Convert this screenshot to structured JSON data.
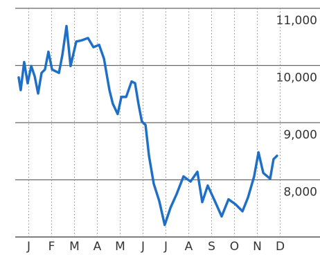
{
  "chart_data": {
    "type": "line",
    "x": [
      0.06,
      0.15,
      0.3,
      0.45,
      0.61,
      0.76,
      0.91,
      1.06,
      1.21,
      1.36,
      1.52,
      1.82,
      1.97,
      2.15,
      2.33,
      2.58,
      2.82,
      3.09,
      3.33,
      3.58,
      3.79,
      4.03,
      4.18,
      4.39,
      4.55,
      4.76,
      5.0,
      5.15,
      5.3,
      5.45,
      5.61,
      5.76,
      5.97,
      6.21,
      6.45,
      6.7,
      6.97,
      7.27,
      7.58,
      7.88,
      8.09,
      8.33,
      8.64,
      8.94,
      9.24,
      9.55,
      9.85,
      10.09,
      10.36,
      10.55,
      10.76,
      11.06,
      11.21,
      11.36
    ],
    "values": [
      9790,
      9570,
      10060,
      9690,
      9990,
      9810,
      9510,
      9870,
      9930,
      10240,
      9930,
      9870,
      10180,
      10690,
      9990,
      10420,
      10440,
      10480,
      10320,
      10360,
      10120,
      9570,
      9330,
      9150,
      9450,
      9450,
      9720,
      9690,
      9330,
      9020,
      8960,
      8420,
      7930,
      7630,
      7210,
      7510,
      7750,
      8060,
      7970,
      8140,
      7610,
      7900,
      7630,
      7360,
      7660,
      7570,
      7450,
      7690,
      8060,
      8480,
      8120,
      8020,
      8360,
      8420
    ],
    "color": "#1f6fc6",
    "xlim": [
      0,
      12
    ],
    "xticks": [
      {
        "value": 0.5,
        "label": "J"
      },
      {
        "value": 1.5,
        "label": "F"
      },
      {
        "value": 2.5,
        "label": "M"
      },
      {
        "value": 3.5,
        "label": "A"
      },
      {
        "value": 4.5,
        "label": "M"
      },
      {
        "value": 5.5,
        "label": "J"
      },
      {
        "value": 6.5,
        "label": "J"
      },
      {
        "value": 7.5,
        "label": "A"
      },
      {
        "value": 8.5,
        "label": "S"
      },
      {
        "value": 9.5,
        "label": "O"
      },
      {
        "value": 10.5,
        "label": "N"
      },
      {
        "value": 11.5,
        "label": "D"
      }
    ],
    "ylim": [
      7000,
      11000
    ],
    "yticks": [
      {
        "value": 8000,
        "label": "8,000"
      },
      {
        "value": 9000,
        "label": "9,000"
      },
      {
        "value": 10000,
        "label": "10,000"
      },
      {
        "value": 11000,
        "label": "11,000"
      }
    ],
    "grid": true
  }
}
